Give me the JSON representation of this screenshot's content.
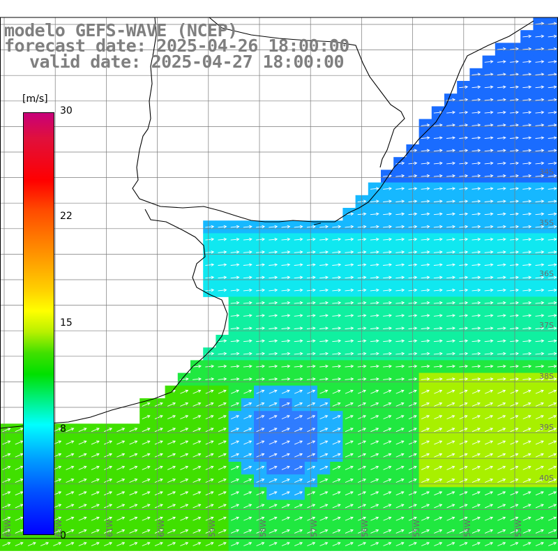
{
  "title": {
    "line1": "modelo GEFS-WAVE (NCEP)",
    "line2": "forecast date: 2025-04-26 18:00:00",
    "line3": "valid date: 2025-04-27 18:00:00"
  },
  "colorbar": {
    "unit": "[m/s]",
    "min": 0,
    "max": 30,
    "ticks": [
      "30",
      "22",
      "15",
      "8",
      "0"
    ],
    "colors": [
      "#0000ff",
      "#0050ff",
      "#00a0ff",
      "#00ffff",
      "#00f080",
      "#00e000",
      "#40e000",
      "#b8f000",
      "#ffff00",
      "#ffd000",
      "#ff9000",
      "#ff4a00",
      "#ff0000",
      "#e0103c",
      "#c8007a"
    ]
  },
  "map": {
    "lon_labels": [
      "63W",
      "62W",
      "61W",
      "60W",
      "59W",
      "58W",
      "57W",
      "56W",
      "55W",
      "54W",
      "53W"
    ],
    "lat_labels": [
      "34S",
      "35S",
      "36S",
      "37S",
      "38S",
      "39S",
      "40S"
    ],
    "land_color": "#ffffff",
    "coast_color": "#000000",
    "grid_color": "#7a7a7a",
    "arrow_color": "#ffffff"
  }
}
